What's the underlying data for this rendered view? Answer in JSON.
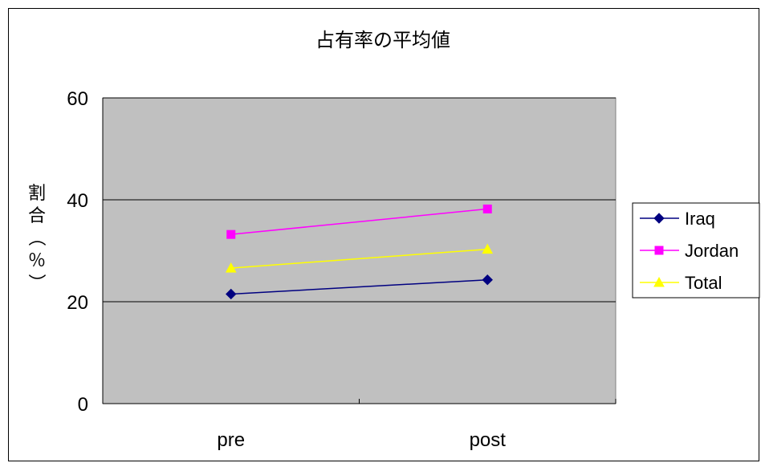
{
  "chart_data": {
    "type": "line",
    "title": "占有率の平均値",
    "ylabel": "割合（％）",
    "ylabel_chars": [
      "割",
      "合",
      "（",
      "％",
      "）"
    ],
    "categories": [
      "pre",
      "post"
    ],
    "ylim": [
      0,
      60
    ],
    "yticks": [
      "0",
      "20",
      "40",
      "60"
    ],
    "grid": true,
    "legend_position": "right",
    "plot_background": "#C0C0C0",
    "series": [
      {
        "name": "Iraq",
        "values": [
          21.5,
          24.3
        ],
        "color": "#000080",
        "marker": "diamond"
      },
      {
        "name": "Jordan",
        "values": [
          33.2,
          38.2
        ],
        "color": "#FF00FF",
        "marker": "square"
      },
      {
        "name": "Total",
        "values": [
          26.6,
          30.3
        ],
        "color": "#FFFF00",
        "marker": "triangle"
      }
    ]
  }
}
